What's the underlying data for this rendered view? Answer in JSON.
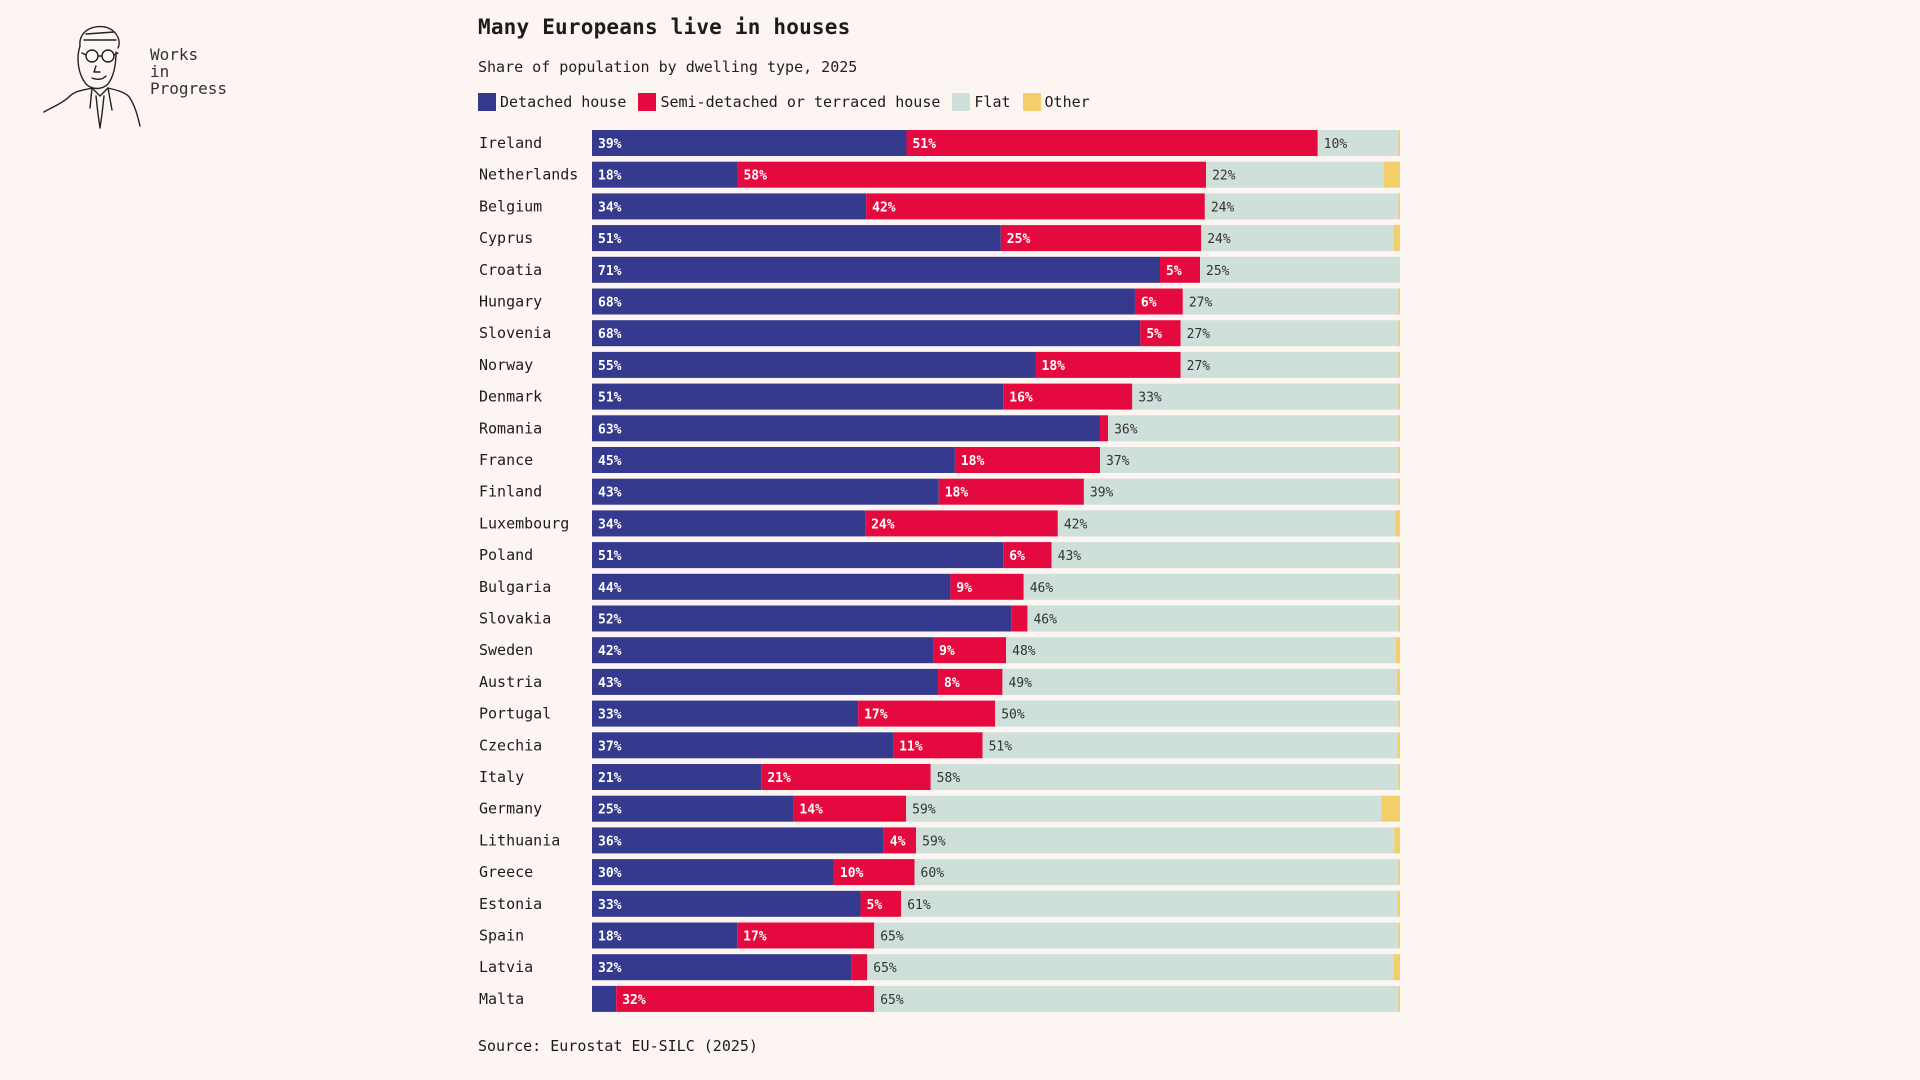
{
  "brand": {
    "logo_lines": [
      "Works",
      "in",
      "Progress"
    ]
  },
  "colors": {
    "detached": "#353a8e",
    "semi": "#e4093e",
    "flat": "#cfe0db",
    "other": "#f2cf6b",
    "background": "#fdf5f1"
  },
  "chart_data": {
    "type": "bar",
    "orientation": "horizontal",
    "stacked": true,
    "title": "Many Europeans live in houses",
    "subtitle": "Share of population by dwelling type, 2025",
    "source": "Source: Eurostat EU-SILC (2025)",
    "legend_position": "top-left",
    "xlim": [
      0,
      100
    ],
    "grid": false,
    "categories": [
      "Ireland",
      "Netherlands",
      "Belgium",
      "Cyprus",
      "Croatia",
      "Hungary",
      "Slovenia",
      "Norway",
      "Denmark",
      "Romania",
      "France",
      "Finland",
      "Luxembourg",
      "Poland",
      "Bulgaria",
      "Slovakia",
      "Sweden",
      "Austria",
      "Portugal",
      "Czechia",
      "Italy",
      "Germany",
      "Lithuania",
      "Greece",
      "Estonia",
      "Spain",
      "Latvia",
      "Malta"
    ],
    "series": [
      {
        "name": "Detached house",
        "values": [
          39,
          18,
          34,
          51,
          71,
          68,
          68,
          55,
          51,
          63,
          45,
          43,
          34,
          51,
          44,
          52,
          42,
          43,
          33,
          37,
          21,
          25,
          36,
          30,
          33,
          18,
          32,
          3
        ],
        "labels": [
          "39%",
          "18%",
          "34%",
          "51%",
          "71%",
          "68%",
          "68%",
          "55%",
          "51%",
          "63%",
          "45%",
          "43%",
          "34%",
          "51%",
          "44%",
          "52%",
          "42%",
          "43%",
          "33%",
          "37%",
          "21%",
          "25%",
          "36%",
          "30%",
          "33%",
          "18%",
          "32%",
          ""
        ]
      },
      {
        "name": "Semi-detached or terraced house",
        "values": [
          51,
          58,
          42,
          25,
          5,
          6,
          5,
          18,
          16,
          1,
          18,
          18,
          24,
          6,
          9,
          2,
          9,
          8,
          17,
          11,
          21,
          14,
          4,
          10,
          5,
          17,
          2,
          32
        ],
        "labels": [
          "51%",
          "58%",
          "42%",
          "25%",
          "5%",
          "6%",
          "5%",
          "18%",
          "16%",
          "",
          "18%",
          "18%",
          "24%",
          "6%",
          "9%",
          "",
          "9%",
          "8%",
          "17%",
          "11%",
          "21%",
          "14%",
          "4%",
          "10%",
          "5%",
          "17%",
          "",
          "32%"
        ]
      },
      {
        "name": "Flat",
        "values": [
          10,
          22,
          24,
          24,
          25,
          27,
          27,
          27,
          33,
          36,
          37,
          39,
          42,
          43,
          46,
          46,
          48,
          49,
          50,
          51,
          58,
          59,
          59,
          60,
          61,
          65,
          65,
          65
        ],
        "labels": [
          "10%",
          "22%",
          "24%",
          "24%",
          "25%",
          "27%",
          "27%",
          "27%",
          "33%",
          "36%",
          "37%",
          "39%",
          "42%",
          "43%",
          "46%",
          "46%",
          "48%",
          "49%",
          "50%",
          "51%",
          "58%",
          "59%",
          "59%",
          "60%",
          "61%",
          "65%",
          "65%",
          "65%"
        ]
      },
      {
        "name": "Other",
        "values": [
          0.2,
          2,
          0.2,
          0.8,
          0,
          0.2,
          0.2,
          0.2,
          0.2,
          0.2,
          0.2,
          0.2,
          0.6,
          0.2,
          0.2,
          0.2,
          0.5,
          0.4,
          0.2,
          0.3,
          0.2,
          2.3,
          0.7,
          0.2,
          0.3,
          0.2,
          0.8,
          0.2
        ],
        "labels": []
      }
    ]
  }
}
